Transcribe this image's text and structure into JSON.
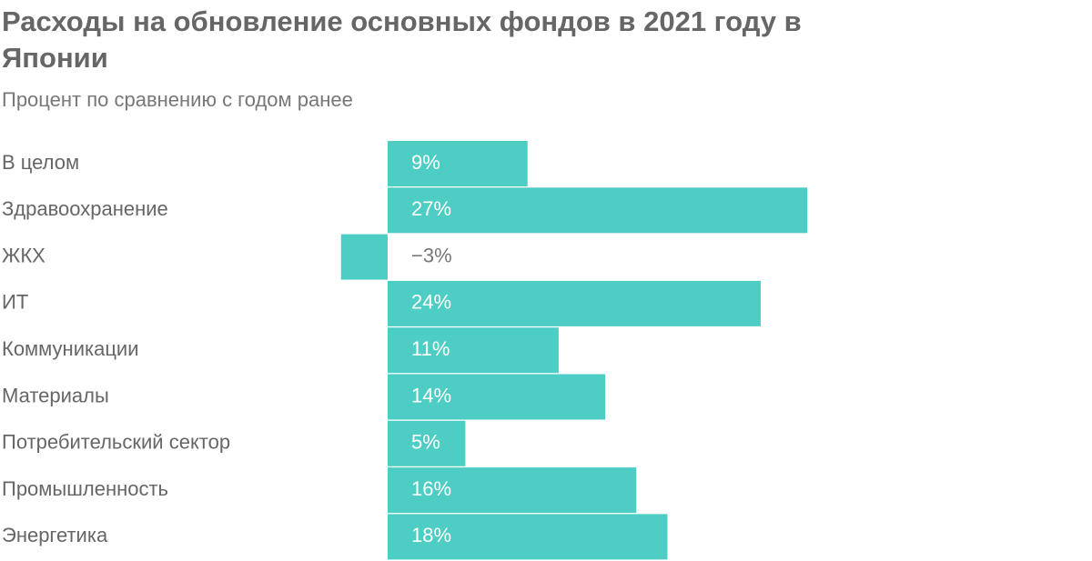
{
  "chart_data": {
    "type": "bar",
    "orientation": "horizontal",
    "title": "Расходы на обновление основных фондов в 2021 году в Японии",
    "subtitle": "Процент по сравнению с годом ранее",
    "categories": [
      "В целом",
      "Здравоохранение",
      "ЖКХ",
      "ИТ",
      "Коммуникации",
      "Материалы",
      "Потребительский сектор",
      "Промышленность",
      "Энергетика"
    ],
    "values": [
      9,
      27,
      -3,
      24,
      11,
      14,
      5,
      16,
      18
    ],
    "value_labels": [
      "9%",
      "27%",
      "−3%",
      "24%",
      "11%",
      "14%",
      "5%",
      "16%",
      "18%"
    ],
    "color": "#4ecdc4"
  }
}
